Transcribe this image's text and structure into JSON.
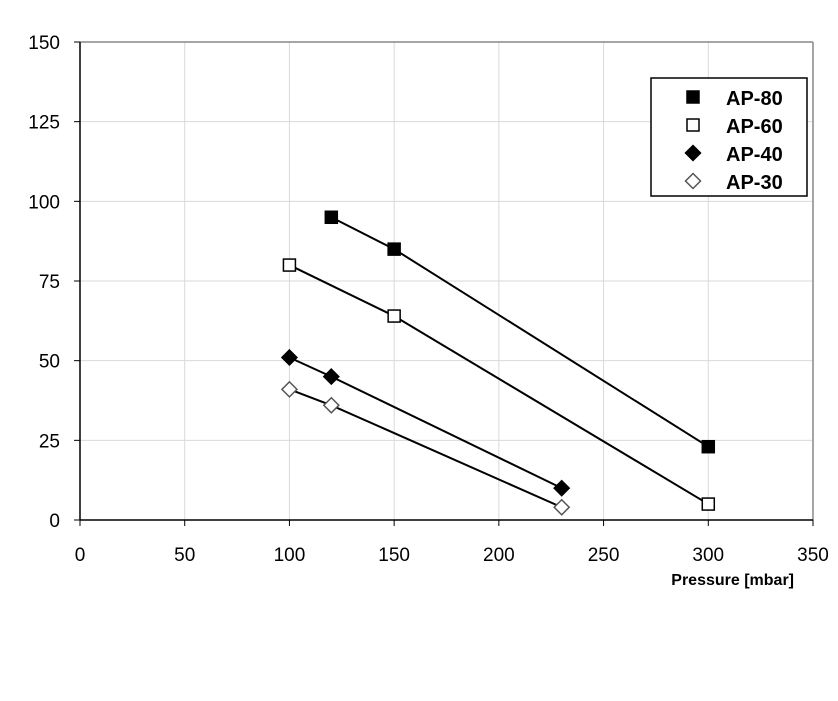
{
  "chart_data": {
    "type": "line",
    "title": "",
    "xlabel": "Pressure [mbar]",
    "ylabel": "",
    "xlim": [
      0,
      350
    ],
    "ylim": [
      0,
      150
    ],
    "xticks": [
      0,
      50,
      100,
      150,
      200,
      250,
      300,
      350
    ],
    "yticks": [
      0,
      25,
      50,
      75,
      100,
      125,
      150
    ],
    "grid": true,
    "legend_position": "top-right",
    "series": [
      {
        "name": "AP-80",
        "marker": "square-filled",
        "x": [
          120,
          150,
          300
        ],
        "y": [
          95,
          85,
          23
        ]
      },
      {
        "name": "AP-60",
        "marker": "square-open",
        "x": [
          100,
          150,
          300
        ],
        "y": [
          80,
          64,
          5
        ]
      },
      {
        "name": "AP-40",
        "marker": "diamond-filled",
        "x": [
          100,
          120,
          230
        ],
        "y": [
          51,
          45,
          10
        ]
      },
      {
        "name": "AP-30",
        "marker": "diamond-open",
        "x": [
          100,
          120,
          230
        ],
        "y": [
          41,
          36,
          4
        ]
      }
    ],
    "colors": {
      "line": "#000000",
      "grid": "#d9d9d9",
      "marker_fill": "#000000",
      "marker_open": "#ffffff"
    }
  }
}
